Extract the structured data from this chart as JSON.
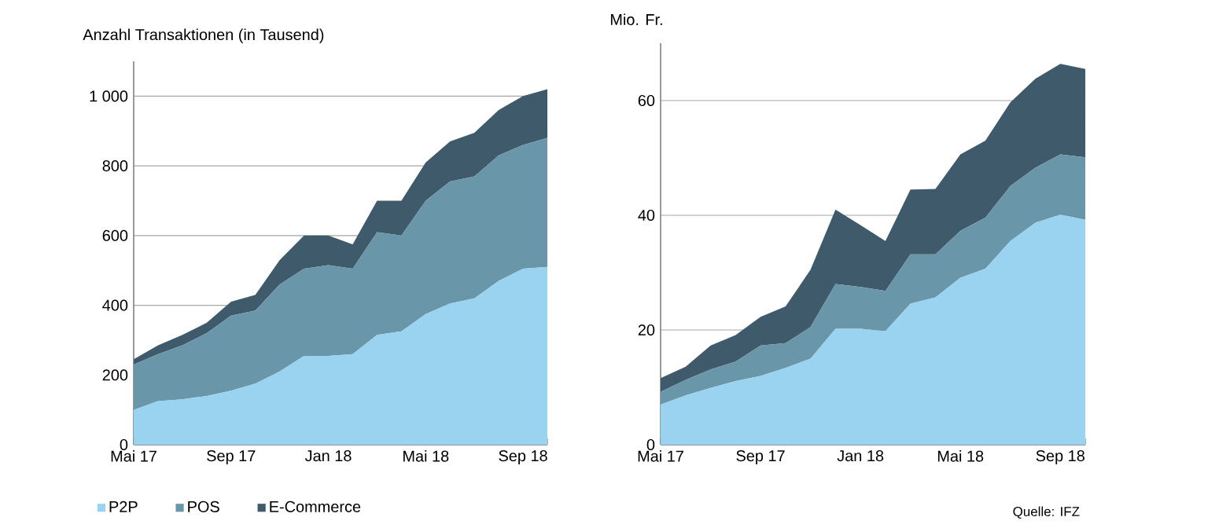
{
  "chart_data": [
    {
      "type": "area",
      "ylabel": "Anzahl Transaktionen (in Tausend)",
      "stacked": true,
      "grid": "y",
      "legend": "bottom",
      "x": [
        "2017-05",
        "2017-06",
        "2017-07",
        "2017-08",
        "2017-09",
        "2017-10",
        "2017-11",
        "2017-12",
        "2018-01",
        "2018-02",
        "2018-03",
        "2018-04",
        "2018-05",
        "2018-06",
        "2018-07",
        "2018-08",
        "2018-09",
        "2018-10"
      ],
      "xlim": [
        "2017-05",
        "2018-10"
      ],
      "xticks": [
        {
          "value": "2017-05",
          "label": "Mai 17"
        },
        {
          "value": "2017-06",
          "label": null
        },
        {
          "value": "2017-07",
          "label": null
        },
        {
          "value": "2017-08",
          "label": null
        },
        {
          "value": "2017-09",
          "label": "Sep 17"
        },
        {
          "value": "2017-10",
          "label": null
        },
        {
          "value": "2017-11",
          "label": null
        },
        {
          "value": "2017-12",
          "label": null
        },
        {
          "value": "2018-01",
          "label": "Jan 18"
        },
        {
          "value": "2018-02",
          "label": null
        },
        {
          "value": "2018-03",
          "label": null
        },
        {
          "value": "2018-04",
          "label": null
        },
        {
          "value": "2018-05",
          "label": "Mai 18"
        },
        {
          "value": "2018-06",
          "label": null
        },
        {
          "value": "2018-07",
          "label": null
        },
        {
          "value": "2018-08",
          "label": null
        },
        {
          "value": "2018-09",
          "label": "Sep 18"
        },
        {
          "value": "2018-10",
          "label": null
        }
      ],
      "ylim": [
        0,
        1100
      ],
      "yticks": [
        0,
        200,
        400,
        600,
        800,
        {
          "value": 1000,
          "label": "1 000"
        }
      ],
      "series": [
        {
          "name": "P2P",
          "color": "#9ad3f0",
          "values": [
            100,
            125,
            130,
            140,
            155,
            175,
            210,
            255,
            255,
            260,
            315,
            325,
            375,
            405,
            420,
            470,
            505,
            510
          ]
        },
        {
          "name": "POS",
          "color": "#6a96aa",
          "values": [
            130,
            135,
            155,
            180,
            215,
            210,
            250,
            250,
            260,
            245,
            295,
            275,
            325,
            350,
            350,
            360,
            355,
            370
          ]
        },
        {
          "name": "E-Commerce",
          "color": "#3f5a6b",
          "values": [
            15,
            25,
            30,
            30,
            40,
            45,
            70,
            95,
            85,
            70,
            90,
            100,
            110,
            115,
            125,
            130,
            140,
            140
          ]
        }
      ]
    },
    {
      "type": "area",
      "ylabel": "Mio. Fr.",
      "stacked": true,
      "grid": "y",
      "annotations": [
        "Quelle: IFZ"
      ],
      "x": [
        "2017-05",
        "2017-06",
        "2017-07",
        "2017-08",
        "2017-09",
        "2017-10",
        "2017-11",
        "2017-12",
        "2018-01",
        "2018-02",
        "2018-03",
        "2018-04",
        "2018-05",
        "2018-06",
        "2018-07",
        "2018-08",
        "2018-09",
        "2018-10"
      ],
      "xlim": [
        "2017-05",
        "2018-10"
      ],
      "xticks": [
        {
          "value": "2017-05",
          "label": "Mai 17"
        },
        {
          "value": "2017-06",
          "label": null
        },
        {
          "value": "2017-07",
          "label": null
        },
        {
          "value": "2017-08",
          "label": null
        },
        {
          "value": "2017-09",
          "label": "Sep 17"
        },
        {
          "value": "2017-10",
          "label": null
        },
        {
          "value": "2017-11",
          "label": null
        },
        {
          "value": "2017-12",
          "label": null
        },
        {
          "value": "2018-01",
          "label": "Jan 18"
        },
        {
          "value": "2018-02",
          "label": null
        },
        {
          "value": "2018-03",
          "label": null
        },
        {
          "value": "2018-04",
          "label": null
        },
        {
          "value": "2018-05",
          "label": "Mai 18"
        },
        {
          "value": "2018-06",
          "label": null
        },
        {
          "value": "2018-07",
          "label": null
        },
        {
          "value": "2018-08",
          "label": null
        },
        {
          "value": "2018-09",
          "label": "Sep 18"
        },
        {
          "value": "2018-10",
          "label": null
        }
      ],
      "ylim": [
        0,
        70
      ],
      "yticks": [
        0,
        20,
        40,
        60
      ],
      "series": [
        {
          "color": "#9ad3f0",
          "values": [
            7.0,
            8.6,
            9.9,
            11.1,
            12.0,
            13.4,
            15.0,
            20.2,
            20.2,
            19.8,
            24.6,
            25.7,
            29.1,
            30.7,
            35.5,
            38.7,
            40.1,
            39.2
          ]
        },
        {
          "color": "#6a96aa",
          "values": [
            2.2,
            2.7,
            3.2,
            3.4,
            5.3,
            4.3,
            5.5,
            7.8,
            7.3,
            7.0,
            8.6,
            7.5,
            8.2,
            8.9,
            9.6,
            9.6,
            10.5,
            10.9
          ]
        },
        {
          "color": "#3f5a6b",
          "values": [
            2.4,
            2.3,
            4.2,
            4.6,
            5.0,
            6.4,
            10.0,
            13.0,
            10.8,
            8.7,
            11.3,
            11.4,
            13.3,
            13.4,
            14.6,
            15.5,
            15.8,
            15.4
          ]
        }
      ]
    }
  ]
}
